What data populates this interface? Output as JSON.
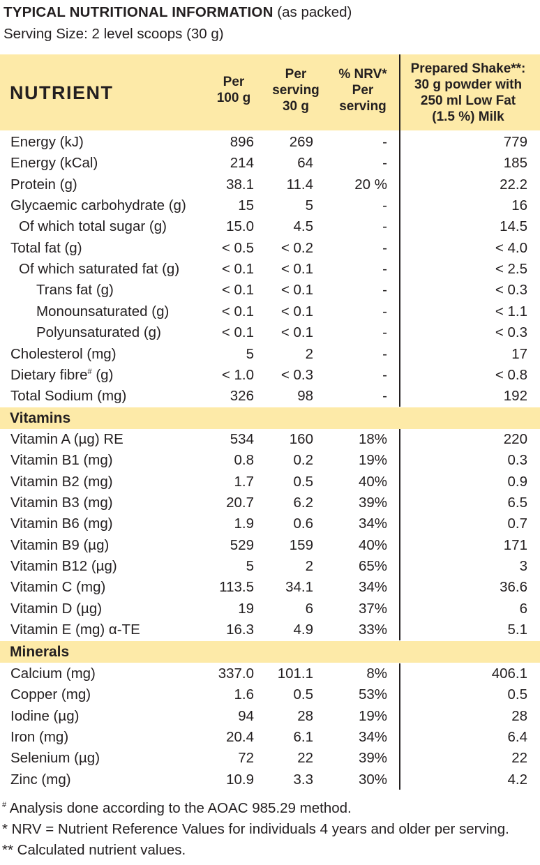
{
  "heading": {
    "title": "TYPICAL NUTRITIONAL INFORMATION",
    "title_suffix": " (as packed)",
    "serving_size": "Serving Size: 2 level scoops (30 g)"
  },
  "table_header": {
    "nutrient": "NUTRIENT",
    "per_100g": "Per\n100 g",
    "per_serving": "Per\nserving\n30 g",
    "nrv": "% NRV*\nPer\nserving",
    "prepared": "Prepared Shake**:\n30 g powder with\n250 ml Low Fat\n(1.5 %) Milk"
  },
  "colors": {
    "band": "#fdeaa8",
    "text": "#231f20"
  },
  "nutrients": [
    {
      "name": "Energy (kJ)",
      "per100": "896",
      "perServing": "269",
      "nrv": "-",
      "prepared": "779"
    },
    {
      "name": "Energy (kCal)",
      "per100": "214",
      "perServing": "64",
      "nrv": "-",
      "prepared": "185"
    },
    {
      "name": "Protein (g)",
      "per100": "38.1",
      "perServing": "11.4",
      "nrv": "20 %",
      "prepared": "22.2"
    },
    {
      "name": "Glycaemic carbohydrate (g)",
      "per100": "15",
      "perServing": "5",
      "nrv": "-",
      "prepared": "16"
    },
    {
      "name": "Of which total sugar (g)",
      "per100": "15.0",
      "perServing": "4.5",
      "nrv": "-",
      "prepared": "14.5",
      "indent": 1
    },
    {
      "name": "Total fat (g)",
      "per100": "< 0.5",
      "perServing": "< 0.2",
      "nrv": "-",
      "prepared": "< 4.0"
    },
    {
      "name": "Of which saturated fat (g)",
      "per100": "< 0.1",
      "perServing": "< 0.1",
      "nrv": "-",
      "prepared": "< 2.5",
      "indent": 1
    },
    {
      "name": "Trans fat (g)",
      "per100": "< 0.1",
      "perServing": "< 0.1",
      "nrv": "-",
      "prepared": "< 0.3",
      "indent": 2
    },
    {
      "name": "Monounsaturated (g)",
      "per100": "< 0.1",
      "perServing": "< 0.1",
      "nrv": "-",
      "prepared": "< 1.1",
      "indent": 2
    },
    {
      "name": "Polyunsaturated (g)",
      "per100": "< 0.1",
      "perServing": "< 0.1",
      "nrv": "-",
      "prepared": "< 0.3",
      "indent": 2
    },
    {
      "name": "Cholesterol (mg)",
      "per100": "5",
      "perServing": "2",
      "nrv": "-",
      "prepared": "17"
    },
    {
      "name": "Dietary fibre",
      "nameSup": "#",
      "nameTail": " (g)",
      "per100": "< 1.0",
      "perServing": "< 0.3",
      "nrv": "-",
      "prepared": "< 0.8"
    },
    {
      "name": "Total Sodium (mg)",
      "per100": "326",
      "perServing": "98",
      "nrv": "-",
      "prepared": "192"
    }
  ],
  "vitamins": {
    "label": "Vitamins",
    "rows": [
      {
        "name": "Vitamin A (µg) RE",
        "per100": "534",
        "perServing": "160",
        "nrv": "18%",
        "prepared": "220"
      },
      {
        "name": "Vitamin B1 (mg)",
        "per100": "0.8",
        "perServing": "0.2",
        "nrv": "19%",
        "prepared": "0.3"
      },
      {
        "name": "Vitamin B2 (mg)",
        "per100": "1.7",
        "perServing": "0.5",
        "nrv": "40%",
        "prepared": "0.9"
      },
      {
        "name": "Vitamin B3 (mg)",
        "per100": "20.7",
        "perServing": "6.2",
        "nrv": "39%",
        "prepared": "6.5"
      },
      {
        "name": "Vitamin B6 (mg)",
        "per100": "1.9",
        "perServing": "0.6",
        "nrv": "34%",
        "prepared": "0.7"
      },
      {
        "name": "Vitamin B9 (µg)",
        "per100": "529",
        "perServing": "159",
        "nrv": "40%",
        "prepared": "171"
      },
      {
        "name": "Vitamin B12 (µg)",
        "per100": "5",
        "perServing": "2",
        "nrv": "65%",
        "prepared": "3"
      },
      {
        "name": "Vitamin C (mg)",
        "per100": "113.5",
        "perServing": "34.1",
        "nrv": "34%",
        "prepared": "36.6"
      },
      {
        "name": "Vitamin D (µg)",
        "per100": "19",
        "perServing": "6",
        "nrv": "37%",
        "prepared": "6"
      },
      {
        "name": "Vitamin E (mg) α-TE",
        "per100": "16.3",
        "perServing": "4.9",
        "nrv": "33%",
        "prepared": "5.1"
      }
    ]
  },
  "minerals": {
    "label": "Minerals",
    "rows": [
      {
        "name": "Calcium (mg)",
        "per100": "337.0",
        "perServing": "101.1",
        "nrv": "8%",
        "prepared": "406.1"
      },
      {
        "name": "Copper (mg)",
        "per100": "1.6",
        "perServing": "0.5",
        "nrv": "53%",
        "prepared": "0.5"
      },
      {
        "name": "Iodine (µg)",
        "per100": "94",
        "perServing": "28",
        "nrv": "19%",
        "prepared": "28"
      },
      {
        "name": "Iron (mg)",
        "per100": "20.4",
        "perServing": "6.1",
        "nrv": "34%",
        "prepared": "6.4"
      },
      {
        "name": "Selenium (µg)",
        "per100": "72",
        "perServing": "22",
        "nrv": "39%",
        "prepared": "22"
      },
      {
        "name": "Zinc (mg)",
        "per100": "10.9",
        "perServing": "3.3",
        "nrv": "30%",
        "prepared": "4.2"
      }
    ]
  },
  "footnotes": {
    "hash_symbol": "#",
    "hash_note": " Analysis done according to the AOAC 985.29 method.",
    "nrv_note": "* NRV = Nutrient Reference Values for individuals 4 years and older per serving.",
    "calc_note": "** Calculated nutrient values."
  }
}
